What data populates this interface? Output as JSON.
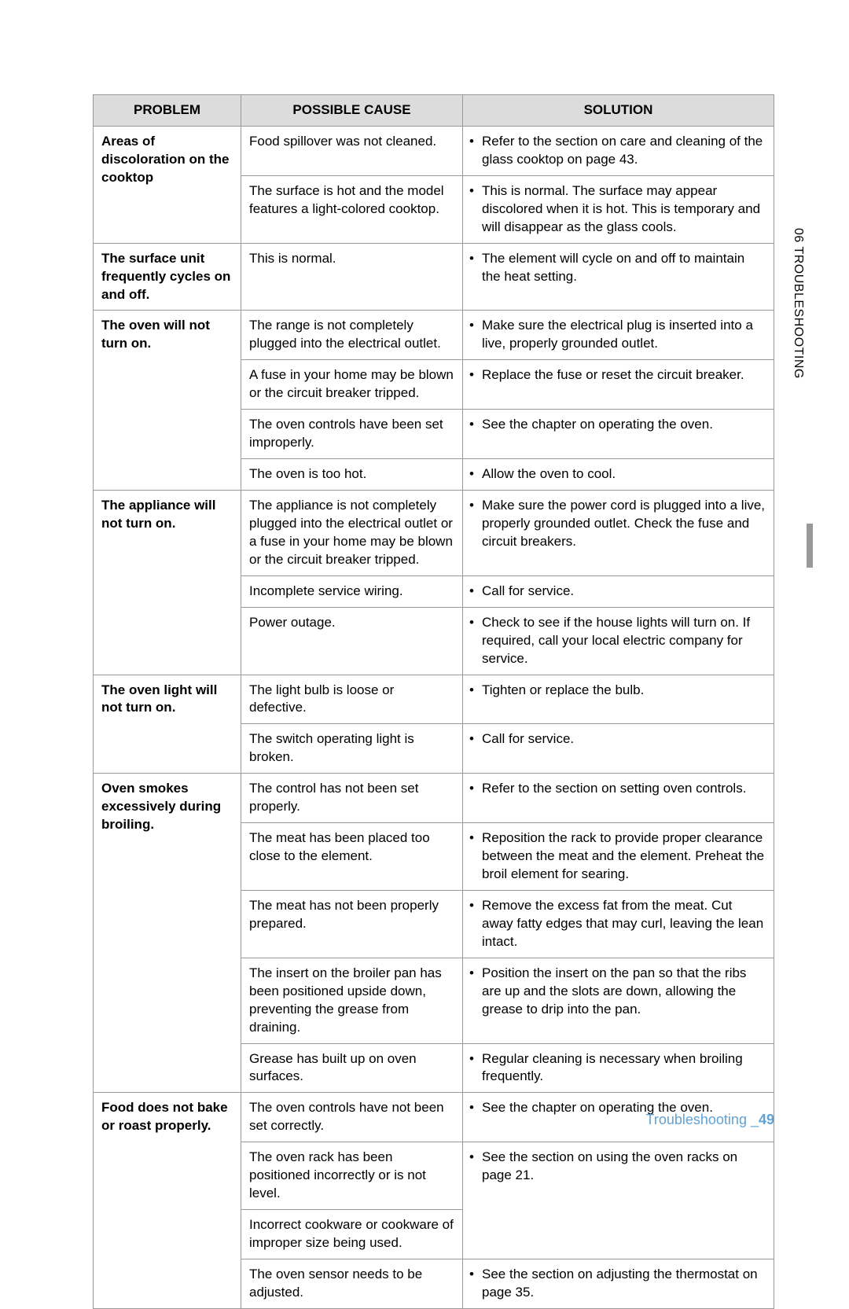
{
  "headers": {
    "c1": "PROBLEM",
    "c2": "POSSIBLE CAUSE",
    "c3": "SOLUTION"
  },
  "sidebar": "06  TROUBLESHOOTING",
  "footer_text": "Troubleshooting _",
  "footer_page": "49",
  "rows": [
    {
      "problem": "Areas of discoloration on the cooktop",
      "problem_rowspan": 2,
      "cause": "Food spillover was not cleaned.",
      "solution": "Refer to the section on care and cleaning of the glass cooktop on page 43."
    },
    {
      "cause": "The surface is hot and the model features a light-colored cooktop.",
      "solution": "This is normal. The surface may appear discolored when it is hot. This is temporary and will disappear as the glass cools."
    },
    {
      "problem": "The surface unit frequently cycles on and off.",
      "problem_rowspan": 1,
      "cause": "This is normal.",
      "solution": "The element will cycle on and off to maintain the heat setting."
    },
    {
      "problem": "The oven will not turn on.",
      "problem_rowspan": 4,
      "cause": "The range is not completely plugged into the electrical outlet.",
      "solution": "Make sure the electrical plug is inserted into a live, properly grounded outlet."
    },
    {
      "cause": "A fuse in your home may be blown or the circuit breaker tripped.",
      "solution": "Replace the fuse or reset the circuit breaker."
    },
    {
      "cause": "The oven controls have been set improperly.",
      "solution": "See the chapter on operating the oven."
    },
    {
      "cause": "The oven is too hot.",
      "solution": "Allow the oven to cool."
    },
    {
      "problem": "The appliance will not turn on.",
      "problem_rowspan": 3,
      "cause": "The appliance is not completely plugged into the electrical outlet or a fuse in your home may be blown or the circuit breaker tripped.",
      "solution": "Make sure the power cord is plugged into a live, properly grounded outlet. Check the fuse and circuit breakers."
    },
    {
      "cause": "Incomplete service wiring.",
      "solution": "Call for service."
    },
    {
      "cause": "Power outage.",
      "solution": "Check to see if the house lights will turn on. If required, call your local electric company for service."
    },
    {
      "problem": "The oven light will not turn on.",
      "problem_rowspan": 2,
      "cause": "The light bulb is loose or defective.",
      "solution": "Tighten or replace the bulb."
    },
    {
      "cause": "The switch operating light is broken.",
      "solution": "Call for service."
    },
    {
      "problem": "Oven smokes excessively during broiling.",
      "problem_rowspan": 5,
      "cause": "The control has not been set properly.",
      "solution": "Refer to the section on setting oven controls."
    },
    {
      "cause": "The meat has been placed too close to the element.",
      "solution": "Reposition the rack to provide proper clearance between the meat and the element. Preheat the broil element for searing."
    },
    {
      "cause": "The meat has not been properly prepared.",
      "solution": "Remove the excess fat from the meat. Cut away fatty edges that may curl, leaving the lean intact."
    },
    {
      "cause": "The insert on the broiler pan has been positioned upside down, preventing the grease from draining.",
      "solution": "Position the insert on the pan so that the ribs are up and the slots are down, allowing the grease to drip into the pan."
    },
    {
      "cause": "Grease has built up on oven surfaces.",
      "solution": "Regular cleaning is necessary when broiling frequently."
    },
    {
      "problem": "Food does not bake or roast properly.",
      "problem_rowspan": 4,
      "cause": "The oven controls have not been set correctly.",
      "solution": "See the chapter on operating the oven."
    },
    {
      "cause": "The oven rack has been positioned incorrectly or is not level.",
      "solution": "See the section on using the oven racks on page 21.",
      "solution_rowspan": 2
    },
    {
      "cause": "Incorrect cookware or cookware of improper size being used."
    },
    {
      "cause": "The oven sensor needs to be adjusted.",
      "solution": "See the section on adjusting the thermostat on page 35."
    }
  ]
}
